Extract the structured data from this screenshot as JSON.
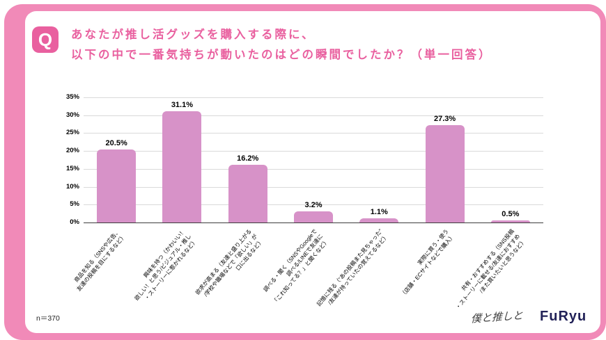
{
  "page": {
    "badge": "Q",
    "title_line1": "あなたが推し活グッズを購入する際に、",
    "title_line2": "以下の中で一番気持ちが動いたのはどの瞬間でしたか？（単一回答）",
    "sample_size": "n＝370",
    "brand_script_logo": "僕と推しと",
    "brand_company_logo": "FuRyu"
  },
  "colors": {
    "frame_pink": "#f18ab8",
    "accent_pink": "#e9609f",
    "bar_fill": "#d792c8",
    "grid_gray": "#d9d9d9",
    "logo_navy": "#222258"
  },
  "chart_data": {
    "type": "bar",
    "title": "推し活グッズ購入時に一番気持ちが動いた瞬間",
    "categories": [
      "商品を知る（SNSや広告、\n友達の投稿を目にするなど）",
      "興味を持つ（かわいい！\n欲しい！と思う/ビジュアル・推し\n・ストーリーに惹かれるなど）",
      "欲求が高まる（友達と盛り上がる\n/学校や職場などで「欲しい」が\n口に出るなど）",
      "調べる・聞く（SNSやGoogleで\n調べる/LINEで友達に\n「これ知ってる？」と聞くなど）",
      "記憶に残る（“あの投稿また見ちゃった”\n/友達が持っていたの覚えてるなど）",
      "実際に買う・使う\n（店舗・ECサイトなどで購入）",
      "共有・おすすめする（SNS投稿\n・ストーリーに載せる/友達におすすめ\n/また買いたいと思うなど）"
    ],
    "values": [
      20.5,
      31.1,
      16.2,
      3.2,
      1.1,
      27.3,
      0.5
    ],
    "value_labels": [
      "20.5%",
      "31.1%",
      "16.2%",
      "3.2%",
      "1.1%",
      "27.3%",
      "0.5%"
    ],
    "xlabel": "",
    "ylabel": "",
    "ylim": [
      0,
      35
    ],
    "ytick_values": [
      0,
      5,
      10,
      15,
      20,
      25,
      30,
      35
    ],
    "ytick_labels": [
      "0%",
      "5%",
      "10%",
      "15%",
      "20%",
      "25%",
      "30%",
      "35%"
    ],
    "grid": true,
    "legend": false
  }
}
